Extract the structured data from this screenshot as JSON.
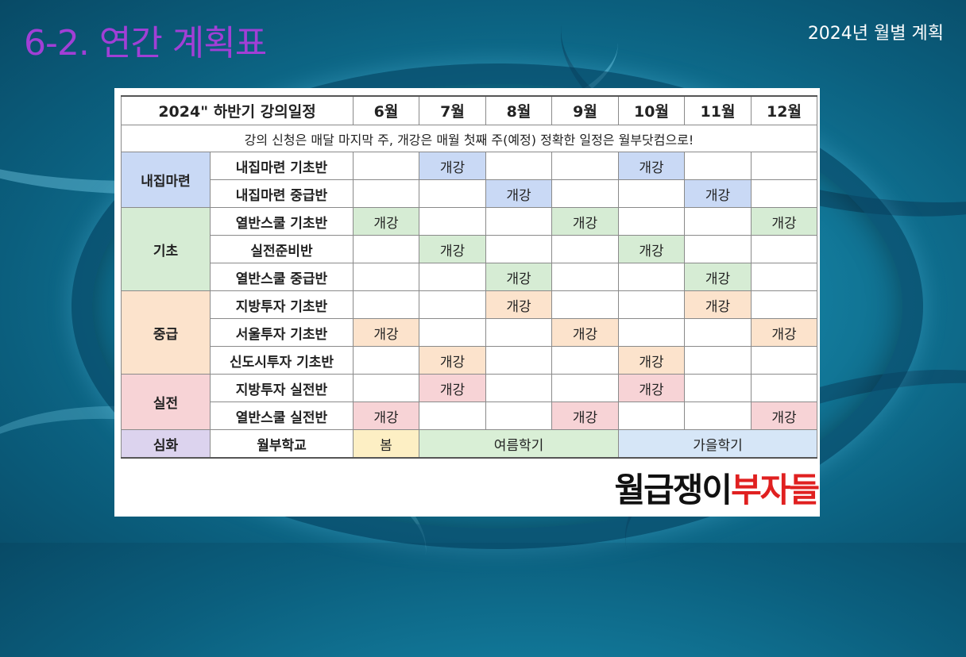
{
  "slide": {
    "title": "6-2. 연간 계획표",
    "subtitle": "2024년 월별 계획"
  },
  "table": {
    "header": [
      "2024\" 하반기 강의일정",
      "6월",
      "7월",
      "8월",
      "9월",
      "10월",
      "11월",
      "12월"
    ],
    "note": "강의 신청은 매달 마지막 주, 개강은 매월 첫째 주(예정) 정확한 일정은 월부닷컴으로!",
    "open_label": "개강",
    "categories": [
      {
        "name": "내집마련",
        "color": "#c9d9f5",
        "courses": [
          {
            "name": "내집마련 기초반",
            "months": [
              false,
              true,
              false,
              false,
              true,
              false,
              false
            ]
          },
          {
            "name": "내집마련 중급반",
            "months": [
              false,
              false,
              true,
              false,
              false,
              true,
              false
            ]
          }
        ]
      },
      {
        "name": "기초",
        "color": "#d6ecd4",
        "courses": [
          {
            "name": "열반스쿨 기초반",
            "months": [
              true,
              false,
              false,
              true,
              false,
              false,
              true
            ]
          },
          {
            "name": "실전준비반",
            "months": [
              false,
              true,
              false,
              false,
              true,
              false,
              false
            ]
          },
          {
            "name": "열반스쿨 중급반",
            "months": [
              false,
              false,
              true,
              false,
              false,
              true,
              false
            ]
          }
        ]
      },
      {
        "name": "중급",
        "color": "#fce3cc",
        "courses": [
          {
            "name": "지방투자 기초반",
            "months": [
              false,
              false,
              true,
              false,
              false,
              true,
              false
            ]
          },
          {
            "name": "서울투자 기초반",
            "months": [
              true,
              false,
              false,
              true,
              false,
              false,
              true
            ]
          },
          {
            "name": "신도시투자 기초반",
            "months": [
              false,
              true,
              false,
              false,
              true,
              false,
              false
            ]
          }
        ]
      },
      {
        "name": "실전",
        "color": "#f7d3d6",
        "courses": [
          {
            "name": "지방투자 실전반",
            "months": [
              false,
              true,
              false,
              false,
              true,
              false,
              false
            ]
          },
          {
            "name": "열반스쿨 실전반",
            "months": [
              true,
              false,
              false,
              true,
              false,
              false,
              true
            ]
          }
        ]
      }
    ],
    "deep": {
      "category": "심화",
      "course": "월부학교",
      "terms": [
        {
          "label": "봄",
          "span": 1,
          "color": "#fdefc4"
        },
        {
          "label": "여름학기",
          "span": 3,
          "color": "#d9efd6"
        },
        {
          "label": "가을학기",
          "span": 3,
          "color": "#d6e6f7"
        }
      ]
    }
  },
  "logo": {
    "part1": "월급쟁이",
    "part2": "부자들"
  }
}
